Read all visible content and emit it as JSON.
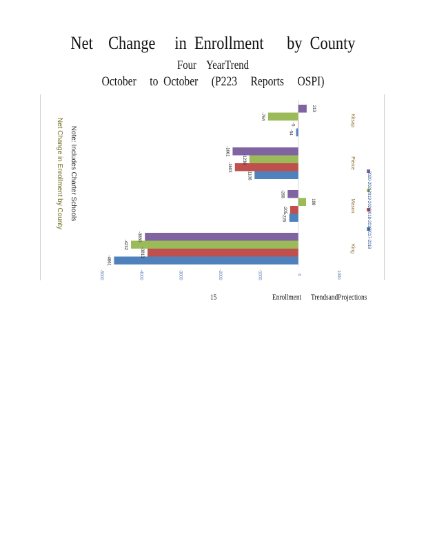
{
  "title": {
    "line1": "Net    Change     in  Enrollment      by  County",
    "line2": "Four    YearTrend",
    "line3": "October     to  October     (P223     Reports     OSPI)"
  },
  "footer": {
    "page_number": "15",
    "text": "Enrollment      TrendsandProjections"
  },
  "chart_data": {
    "type": "bar",
    "orientation": "horizontal",
    "ylabel": "Net Change in Enrollment by County",
    "subtitle": "Note: Includes Charter Schools",
    "grid": false,
    "xlim": [
      -5000,
      1000
    ],
    "x_ticks": [
      "-5000",
      "-4000",
      "-3000",
      "-2000",
      "-1000",
      "0",
      "1000"
    ],
    "categories": [
      "Kitsap",
      "Pierce",
      "Mason",
      "King"
    ],
    "series": [
      {
        "name": "2017-2018",
        "color": "#4f81bd",
        "values": [
          -54,
          -1106,
          -226,
          -4661
        ]
      },
      {
        "name": "2018-2019",
        "color": "#c0504d",
        "values": [
          -5,
          -1603,
          -205,
          -3813
        ]
      },
      {
        "name": "2019-2020",
        "color": "#9bbb59",
        "values": [
          -764,
          -1236,
          198,
          -4232
        ]
      },
      {
        "name": "2020-2021",
        "color": "#8064a2",
        "values": [
          213,
          -1661,
          -268,
          -3880
        ]
      }
    ],
    "legend": {
      "placement": "right",
      "entries": [
        "2017-2018",
        "2018-2019",
        "2019-2020",
        "2020-2021"
      ]
    }
  }
}
